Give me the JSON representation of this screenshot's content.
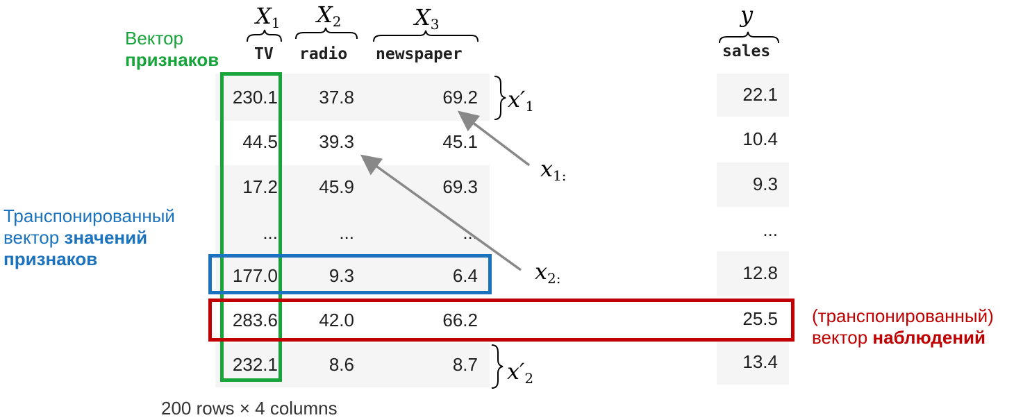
{
  "table": {
    "columns": [
      "TV",
      "radio",
      "newspaper"
    ],
    "target_column": "sales",
    "rows": [
      {
        "tv": "230.1",
        "radio": "37.8",
        "newspaper": "69.2",
        "sales": "22.1"
      },
      {
        "tv": "44.5",
        "radio": "39.3",
        "newspaper": "45.1",
        "sales": "10.4"
      },
      {
        "tv": "17.2",
        "radio": "45.9",
        "newspaper": "69.3",
        "sales": "9.3"
      },
      {
        "tv": "...",
        "radio": "...",
        "newspaper": "...",
        "sales": "..."
      },
      {
        "tv": "177.0",
        "radio": "9.3",
        "newspaper": "6.4",
        "sales": "12.8"
      },
      {
        "tv": "283.6",
        "radio": "42.0",
        "newspaper": "66.2",
        "sales": "25.5"
      },
      {
        "tv": "232.1",
        "radio": "8.6",
        "newspaper": "8.7",
        "sales": "13.4"
      }
    ],
    "footer": "200 rows × 4 columns"
  },
  "math": {
    "x1": {
      "base": "X",
      "sub": "1"
    },
    "x2": {
      "base": "X",
      "sub": "2"
    },
    "x3": {
      "base": "X",
      "sub": "3"
    },
    "y": "y",
    "row1_prime": {
      "base": "x′",
      "sub": "1"
    },
    "row_last_prime": {
      "base": "x′",
      "sub": "2"
    },
    "x12": {
      "base": "x",
      "sub": "1:"
    },
    "x22": {
      "base": "x",
      "sub": "2:"
    }
  },
  "labels": {
    "feature_vector_line1": "Вектор",
    "feature_vector_line2": "признаков",
    "transposed_line1": "Транспонированный",
    "transposed_line2_prefix": "вектор ",
    "transposed_line2_bold": "значений",
    "transposed_line3": "признаков",
    "observation_line1": "(транспонированный)",
    "observation_line2_prefix": "вектор ",
    "observation_line2_bold": "наблюдений"
  },
  "colors": {
    "green": "#17a43a",
    "blue": "#1b72be",
    "red": "#c00000",
    "arrow": "#888888",
    "row_stripe": "#f5f5f5"
  }
}
